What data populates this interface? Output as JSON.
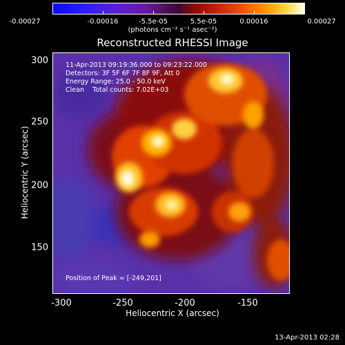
{
  "colorbar": {
    "labels": [
      "-0.00027",
      "-0.00016",
      "-5.5e-05",
      "5.5e-05",
      "0.00016",
      "0.00027"
    ],
    "units": "(photons cm⁻² s⁻¹ asec⁻²)"
  },
  "title": "Reconstructed RHESSI Image",
  "annotations": {
    "time_range": "11-Apr-2013 09:19:36.000 to 09:23:22.000",
    "detectors": "Detectors: 3F 5F 6F 7F 8F 9F, Att 0",
    "energy": "Energy Range: 25.0 - 50.0 keV",
    "clean": "Clean    Total counts: 7.02E+03",
    "peak": "Position of Peak = [-249,201]"
  },
  "axes": {
    "xlabel": "Heliocentric X (arcsec)",
    "ylabel": "Heliocentric Y (arcsec)",
    "xticks": [
      "-300",
      "-250",
      "-200",
      "-150"
    ],
    "yticks": [
      "300",
      "250",
      "200",
      "150"
    ]
  },
  "timestamp": "13-Apr-2013 02:28"
}
